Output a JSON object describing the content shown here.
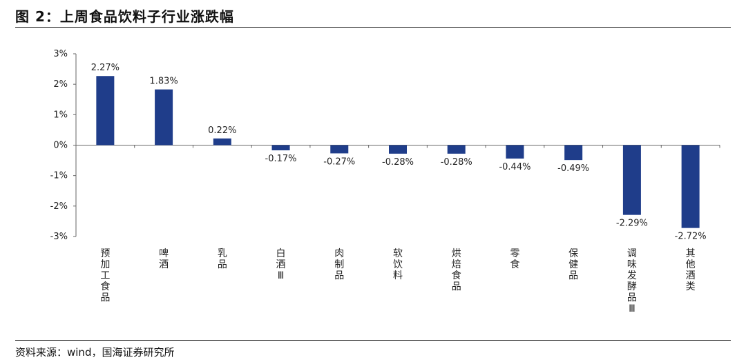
{
  "figure": {
    "title": "图 2：上周食品饮料子行业涨跌幅",
    "source": "资料来源：wind，国海证券研究所"
  },
  "chart_data": {
    "type": "bar",
    "categories": [
      "预加工食品",
      "啤酒",
      "乳品",
      "白酒Ⅲ",
      "肉制品",
      "软饮料",
      "烘焙食品",
      "零食",
      "保健品",
      "调味发酵品Ⅲ",
      "其他酒类"
    ],
    "values": [
      2.27,
      1.83,
      0.22,
      -0.17,
      -0.27,
      -0.28,
      -0.28,
      -0.44,
      -0.49,
      -2.29,
      -2.72
    ],
    "data_labels": [
      "2.27%",
      "1.83%",
      "0.22%",
      "-0.17%",
      "-0.27%",
      "-0.28%",
      "-0.28%",
      "-0.44%",
      "-0.49%",
      "-2.29%",
      "-2.72%"
    ],
    "yticks": [
      3,
      2,
      1,
      0,
      -1,
      -2,
      -3
    ],
    "ytick_labels": [
      "3%",
      "2%",
      "1%",
      "0%",
      "-1%",
      "-2%",
      "-3%"
    ],
    "ylim": [
      -3,
      3
    ],
    "xlabel": "",
    "ylabel": "",
    "grid": false,
    "legend": "none",
    "bar_color": "#1f3d8a"
  }
}
